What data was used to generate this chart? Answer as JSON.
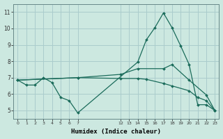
{
  "xlabel": "Humidex (Indice chaleur)",
  "bg_color": "#cce8e0",
  "grid_color": "#aacccc",
  "line_color": "#1a6b5a",
  "xlim": [
    -0.5,
    23.5
  ],
  "ylim": [
    4.5,
    11.5
  ],
  "yticks": [
    5,
    6,
    7,
    8,
    9,
    10,
    11
  ],
  "xticks_shown": [
    0,
    1,
    2,
    3,
    4,
    5,
    6,
    7,
    12,
    13,
    14,
    15,
    16,
    17,
    18,
    19,
    20,
    21,
    22,
    23
  ],
  "xticks_all": [
    0,
    1,
    2,
    3,
    4,
    5,
    6,
    7,
    8,
    9,
    10,
    11,
    12,
    13,
    14,
    15,
    16,
    17,
    18,
    19,
    20,
    21,
    22,
    23
  ],
  "lines": [
    {
      "x": [
        0,
        1,
        2,
        3,
        4,
        5,
        6,
        7,
        14,
        15,
        16,
        17,
        18,
        19,
        20,
        21,
        22,
        23
      ],
      "y": [
        6.85,
        6.55,
        6.55,
        7.0,
        6.7,
        5.8,
        5.6,
        4.85,
        7.95,
        9.3,
        10.05,
        10.95,
        10.05,
        8.95,
        7.8,
        5.35,
        5.35,
        5.0
      ]
    },
    {
      "x": [
        0,
        7,
        12,
        14,
        17,
        18,
        20,
        22,
        23
      ],
      "y": [
        6.85,
        7.0,
        7.2,
        7.55,
        7.55,
        7.8,
        6.85,
        5.95,
        5.0
      ]
    },
    {
      "x": [
        0,
        7,
        12,
        14,
        15,
        17,
        18,
        20,
        21,
        22,
        23
      ],
      "y": [
        6.85,
        7.0,
        6.95,
        6.95,
        6.9,
        6.65,
        6.5,
        6.2,
        5.8,
        5.6,
        5.0
      ]
    }
  ]
}
